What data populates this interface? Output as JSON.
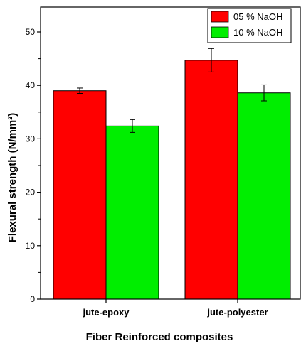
{
  "chart_data": {
    "type": "bar",
    "categories": [
      "jute-epoxy",
      "jute-polyester"
    ],
    "series": [
      {
        "name": "05 % NaOH",
        "color": "#ff0000",
        "values": [
          39.0,
          44.7
        ],
        "errors": [
          0.5,
          2.2
        ]
      },
      {
        "name": "10 % NaOH",
        "color": "#00ee00",
        "values": [
          32.4,
          38.6
        ],
        "errors": [
          1.2,
          1.5
        ]
      }
    ],
    "xlabel": "Fiber Reinforced composites",
    "ylabel": "Flexural strength (N/mm²)",
    "ylim": [
      0,
      50
    ],
    "yticks": [
      0,
      10,
      20,
      30,
      40,
      50
    ],
    "legend_position": "top-right",
    "grid": false
  }
}
